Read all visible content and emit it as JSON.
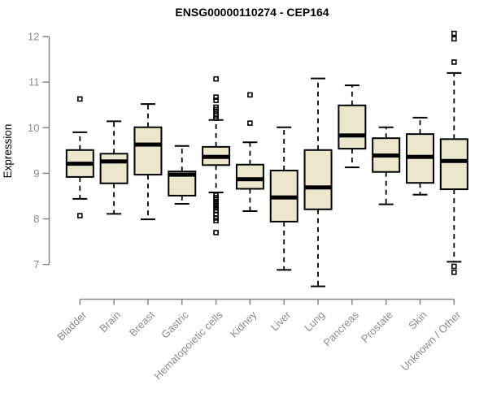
{
  "chart_data": {
    "type": "box",
    "title": "ENSG00000110274 - CEP164",
    "ylabel": "Expression",
    "xlabel": "",
    "ylim": [
      7,
      12
    ],
    "yticks": [
      7,
      8,
      9,
      10,
      11,
      12
    ],
    "grid": false,
    "legend": "none",
    "colors": {
      "box_fill": "#ECE6CD",
      "box_stroke": "#000000",
      "median": "#000000",
      "whisker": "#000000",
      "axis": "#878787",
      "tick_label": "#8C8C8C",
      "title": "#000000"
    },
    "categories": [
      "Bladder",
      "Brain",
      "Breast",
      "Gastric",
      "Hematopoietic cells",
      "Kidney",
      "Liver",
      "Lung",
      "Pancreas",
      "Prostate",
      "Skin",
      "Unknown / Other"
    ],
    "series": [
      {
        "label": "Bladder",
        "whisker_low": 8.44,
        "q1": 8.92,
        "median": 9.21,
        "q3": 9.51,
        "whisker_high": 9.9,
        "outliers": [
          10.63,
          8.07
        ]
      },
      {
        "label": "Brain",
        "whisker_low": 8.11,
        "q1": 8.78,
        "median": 9.26,
        "q3": 9.43,
        "whisker_high": 10.14,
        "outliers": []
      },
      {
        "label": "Breast",
        "whisker_low": 7.99,
        "q1": 8.97,
        "median": 9.63,
        "q3": 10.01,
        "whisker_high": 10.52,
        "outliers": []
      },
      {
        "label": "Gastric",
        "whisker_low": 8.33,
        "q1": 8.51,
        "median": 8.97,
        "q3": 9.04,
        "whisker_high": 9.6,
        "outliers": []
      },
      {
        "label": "Hematopoietic cells",
        "whisker_low": 8.58,
        "q1": 9.18,
        "median": 9.36,
        "q3": 9.58,
        "whisker_high": 10.17,
        "outliers": [
          11.07,
          10.67,
          10.6,
          10.45,
          10.4,
          10.35,
          10.3,
          10.26,
          10.21,
          8.52,
          8.47,
          8.42,
          8.36,
          8.3,
          8.24,
          8.18,
          8.1,
          8.02,
          7.96,
          7.7
        ]
      },
      {
        "label": "Kidney",
        "whisker_low": 8.17,
        "q1": 8.66,
        "median": 8.87,
        "q3": 9.19,
        "whisker_high": 9.68,
        "outliers": [
          10.72,
          10.1
        ]
      },
      {
        "label": "Liver",
        "whisker_low": 6.88,
        "q1": 7.94,
        "median": 8.47,
        "q3": 9.06,
        "whisker_high": 10.01,
        "outliers": []
      },
      {
        "label": "Lung",
        "whisker_low": 6.52,
        "q1": 8.21,
        "median": 8.69,
        "q3": 9.51,
        "whisker_high": 11.08,
        "outliers": []
      },
      {
        "label": "Pancreas",
        "whisker_low": 9.13,
        "q1": 9.54,
        "median": 9.83,
        "q3": 10.49,
        "whisker_high": 10.93,
        "outliers": []
      },
      {
        "label": "Prostate",
        "whisker_low": 8.32,
        "q1": 9.03,
        "median": 9.39,
        "q3": 9.77,
        "whisker_high": 10.01,
        "outliers": []
      },
      {
        "label": "Skin",
        "whisker_low": 8.53,
        "q1": 8.79,
        "median": 9.36,
        "q3": 9.86,
        "whisker_high": 10.22,
        "outliers": []
      },
      {
        "label": "Unknown / Other",
        "whisker_low": 7.06,
        "q1": 8.65,
        "median": 9.27,
        "q3": 9.75,
        "whisker_high": 11.2,
        "outliers": [
          12.07,
          11.95,
          11.44,
          6.96,
          6.83
        ]
      }
    ]
  }
}
